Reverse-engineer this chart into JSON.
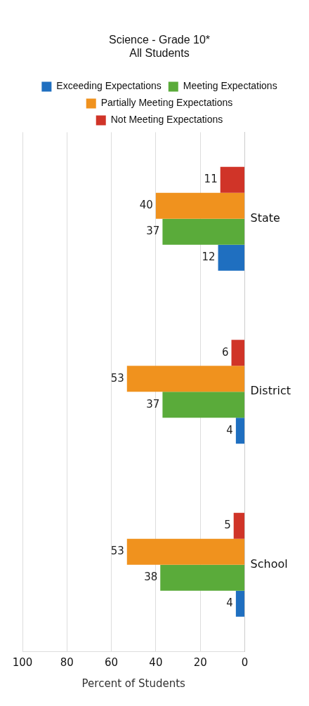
{
  "chart_data": {
    "type": "bar",
    "orientation": "horizontal",
    "title": [
      "Science - Grade 10*",
      "All Students"
    ],
    "xlabel": "Percent of Students",
    "categories": [
      "State",
      "District",
      "School"
    ],
    "series": [
      {
        "name": "Exceeding Expectations",
        "color": "#1f6fc0",
        "values": [
          12,
          4,
          4
        ]
      },
      {
        "name": "Meeting Expectations",
        "color": "#5aab3a",
        "values": [
          37,
          37,
          38
        ]
      },
      {
        "name": "Partially Meeting Expectations",
        "color": "#f0921e",
        "values": [
          40,
          53,
          53
        ]
      },
      {
        "name": "Not Meeting Expectations",
        "color": "#d03428",
        "values": [
          11,
          6,
          5
        ]
      }
    ],
    "xlim": [
      100,
      0
    ],
    "xticks": [
      0,
      20,
      40,
      60,
      80,
      100
    ],
    "grid": "x",
    "legend": "top",
    "data_labels": true
  }
}
